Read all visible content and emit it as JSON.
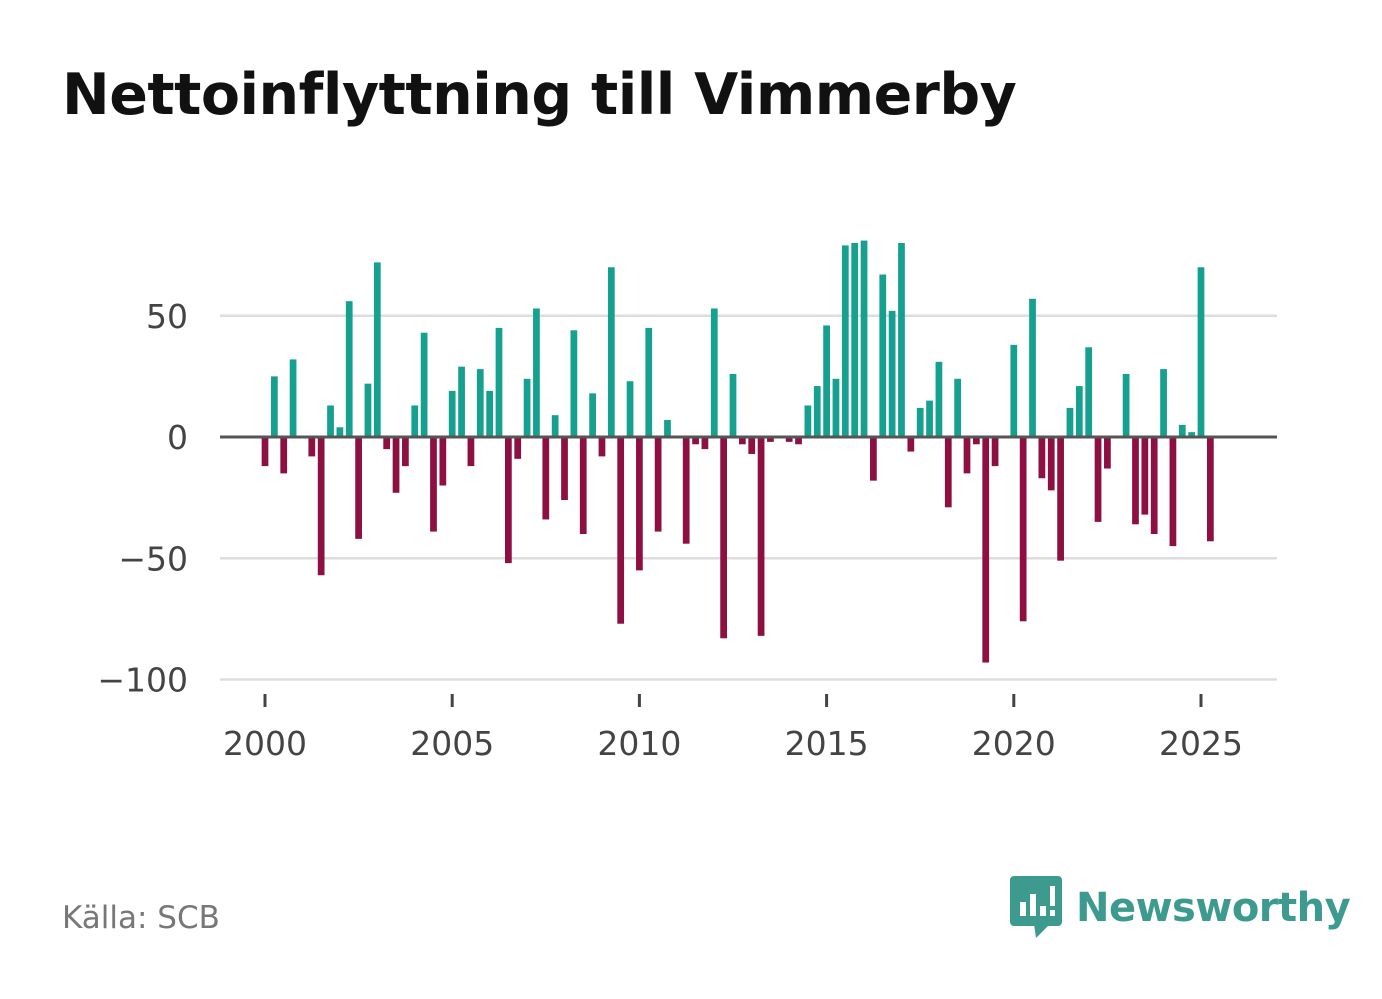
{
  "title": "Nettoinflyttning till Vimmerby",
  "source": "Källa: SCB",
  "brand": {
    "name": "Newsworthy",
    "icon": "newsworthy-logo-icon"
  },
  "colors": {
    "positive": "#16a090",
    "negative": "#8e0f42",
    "grid": "#dddddd",
    "zero_line": "#555555",
    "brand": "#3d9a8f"
  },
  "chart_data": {
    "type": "bar",
    "title": "Nettoinflyttning till Vimmerby",
    "xlabel": "",
    "ylabel": "",
    "frequency": "quarterly",
    "x_start": 2000.0,
    "x_step": 0.25,
    "xlim": [
      1999.5,
      2027.0
    ],
    "ylim": [
      -100,
      80
    ],
    "yticks": [
      50,
      0,
      -50,
      -100
    ],
    "ytick_labels": [
      "50",
      "0",
      "−50",
      "−100"
    ],
    "xticks": [
      2000,
      2005,
      2010,
      2015,
      2020,
      2025
    ],
    "xtick_labels": [
      "2000",
      "2005",
      "2010",
      "2015",
      "2020",
      "2025"
    ],
    "values": [
      -12,
      25,
      -15,
      32,
      0,
      -8,
      -57,
      13,
      4,
      56,
      -42,
      22,
      72,
      -5,
      -23,
      -12,
      13,
      43,
      -39,
      -20,
      19,
      29,
      -12,
      28,
      19,
      45,
      -52,
      -9,
      24,
      53,
      -34,
      9,
      -26,
      44,
      -40,
      18,
      -8,
      70,
      -77,
      23,
      -55,
      45,
      -39,
      7,
      0,
      -44,
      -3,
      -5,
      53,
      -83,
      26,
      -3,
      -7,
      -82,
      -2,
      0,
      -2,
      -3,
      13,
      21,
      46,
      24,
      79,
      80,
      81,
      -18,
      67,
      52,
      80,
      -6,
      12,
      15,
      31,
      -29,
      24,
      -15,
      -3,
      -93,
      -12,
      0,
      38,
      -76,
      57,
      -17,
      -22,
      -51,
      12,
      21,
      37,
      -35,
      -13,
      0,
      26,
      -36,
      -32,
      -40,
      28,
      -45,
      5,
      2,
      70,
      -43
    ],
    "grid": true,
    "legend": "none"
  }
}
